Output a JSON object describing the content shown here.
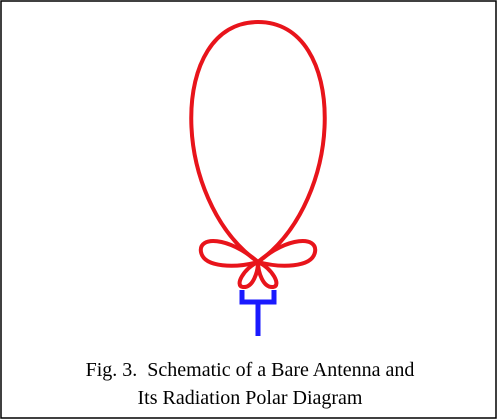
{
  "caption": {
    "lines": [
      "Fig. 3.  Schematic of a Bare Antenna and",
      "Its Radiation Polar Diagram"
    ]
  }
}
